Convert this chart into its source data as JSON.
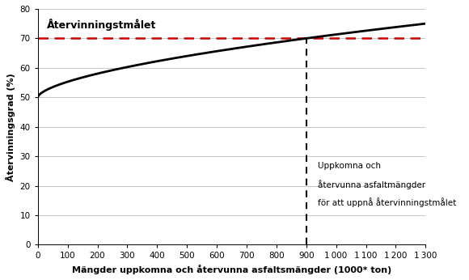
{
  "title": "",
  "xlabel": "Mängder uppkomna och återvunna asfaltsmängder (1000* ton)",
  "ylabel": "Återvinningsgrad (%)",
  "xlim": [
    0,
    1300
  ],
  "ylim": [
    0,
    80
  ],
  "yticks": [
    0,
    10,
    20,
    30,
    40,
    50,
    60,
    70,
    80
  ],
  "xticks": [
    0,
    100,
    200,
    300,
    400,
    500,
    600,
    700,
    800,
    900,
    1000,
    1100,
    1200,
    1300
  ],
  "recycling_target": 70,
  "target_label": "Återvinningstmålet",
  "vline_x": 900,
  "curve_color": "#000000",
  "target_line_color": "#cc0000",
  "vline_color": "#000000",
  "background_color": "#ffffff",
  "grid_color": "#bbbbbb",
  "annotation_line1": "Uppkomna och",
  "annotation_line2": "återvunna asfaltmängder",
  "annotation_line3": "för att uppnå återvinningstmålet"
}
